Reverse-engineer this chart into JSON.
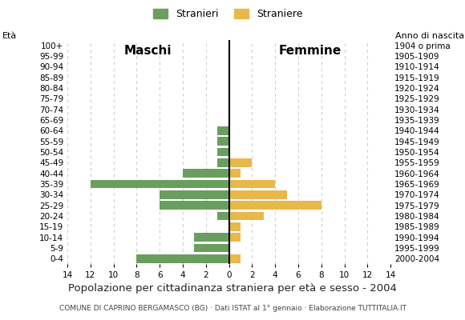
{
  "age_groups": [
    "0-4",
    "5-9",
    "10-14",
    "15-19",
    "20-24",
    "25-29",
    "30-34",
    "35-39",
    "40-44",
    "45-49",
    "50-54",
    "55-59",
    "60-64",
    "65-69",
    "70-74",
    "75-79",
    "80-84",
    "85-89",
    "90-94",
    "95-99",
    "100+"
  ],
  "birth_years": [
    "2000-2004",
    "1995-1999",
    "1990-1994",
    "1985-1989",
    "1980-1984",
    "1975-1979",
    "1970-1974",
    "1965-1969",
    "1960-1964",
    "1955-1959",
    "1950-1954",
    "1945-1949",
    "1940-1944",
    "1935-1939",
    "1930-1934",
    "1925-1929",
    "1920-1924",
    "1915-1919",
    "1910-1914",
    "1905-1909",
    "1904 o prima"
  ],
  "males": [
    8,
    3,
    3,
    0,
    1,
    6,
    6,
    12,
    4,
    1,
    1,
    1,
    1,
    0,
    0,
    0,
    0,
    0,
    0,
    0,
    0
  ],
  "females": [
    1,
    0,
    1,
    1,
    3,
    8,
    5,
    4,
    1,
    2,
    0,
    0,
    0,
    0,
    0,
    0,
    0,
    0,
    0,
    0,
    0
  ],
  "male_color": "#6a9e5e",
  "female_color": "#e8b84b",
  "title": "Popolazione per cittadinanza straniera per età e sesso - 2004",
  "subtitle": "COMUNE DI CAPRINO BERGAMASCO (BG) · Dati ISTAT al 1° gennaio · Elaborazione TUTTITALIA.IT",
  "legend_male": "Stranieri",
  "legend_female": "Straniere",
  "label_eta": "Età",
  "label_anno": "Anno di nascita",
  "label_maschi": "Maschi",
  "label_femmine": "Femmine",
  "xlim": 14,
  "background_color": "#ffffff",
  "grid_color": "#cccccc"
}
